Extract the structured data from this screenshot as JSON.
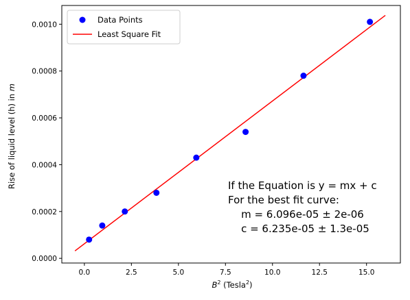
{
  "chart_data": {
    "type": "scatter",
    "ylabel": "Rise of liquid level (h) in m",
    "xlabel_parts": {
      "base": "B",
      "exp": "2",
      "unit_open": " (Tesla",
      "unit_exp": "2",
      "unit_close": ")"
    },
    "ylabel_parts": {
      "text": "Rise of liquid level (h) in ",
      "italic": "m"
    },
    "xlim": [
      -1.2,
      16.8
    ],
    "ylim": [
      -2e-05,
      0.00108
    ],
    "x_ticks": [
      0.0,
      2.5,
      5.0,
      7.5,
      10.0,
      12.5,
      15.0
    ],
    "x_tick_labels": [
      "0.0",
      "2.5",
      "5.0",
      "7.5",
      "10.0",
      "12.5",
      "15.0"
    ],
    "y_ticks": [
      0.0,
      0.0002,
      0.0004,
      0.0006,
      0.0008,
      0.001
    ],
    "y_tick_labels": [
      "0.0000",
      "0.0002",
      "0.0004",
      "0.0006",
      "0.0008",
      "0.0010"
    ],
    "grid": false,
    "legend_position": "top-left",
    "series": [
      {
        "name": "Data Points",
        "kind": "points",
        "color": "#0000ff",
        "x": [
          0.25,
          0.95,
          2.15,
          3.83,
          5.95,
          8.57,
          11.65,
          15.18
        ],
        "y": [
          8e-05,
          0.00014,
          0.0002,
          0.00028,
          0.00043,
          0.00054,
          0.00078,
          0.00101
        ]
      },
      {
        "name": "Least Square Fit",
        "kind": "line",
        "color": "#ff0000",
        "x": [
          -0.5,
          16.0
        ],
        "y": [
          3.18e-05,
          0.0010377
        ]
      }
    ],
    "annotation": [
      "If the Equation is y = mx + c",
      "For the best fit curve:",
      "    m = 6.096e-05 ± 2e-06",
      "    c = 6.235e-05 ± 1.3e-05"
    ]
  }
}
